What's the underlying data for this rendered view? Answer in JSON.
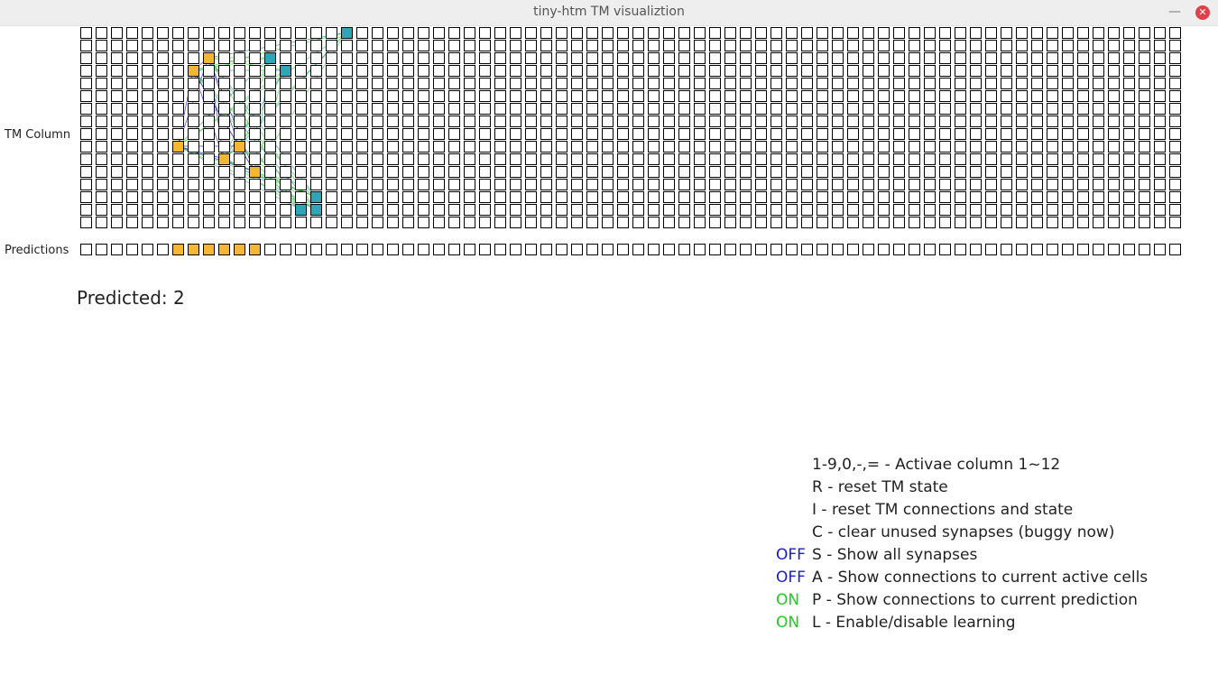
{
  "window": {
    "title": "tiny-htm TM visualiztion"
  },
  "labels": {
    "tm_column": "TM Column",
    "predictions": "Predictions"
  },
  "predicted_text": "Predicted: 2",
  "grid": {
    "columns": 12,
    "cells_per_column": 6,
    "rows": 16,
    "active_cells": [
      {
        "column": 2,
        "cell": 5,
        "row": 0
      },
      {
        "column": 2,
        "cell": 0,
        "row": 2
      },
      {
        "column": 2,
        "cell": 1,
        "row": 3
      },
      {
        "column": 2,
        "cell": 3,
        "row": 13
      },
      {
        "column": 2,
        "cell": 2,
        "row": 14
      },
      {
        "column": 2,
        "cell": 3,
        "row": 14
      }
    ],
    "predicted_cells": [
      {
        "column": 1,
        "cell": 2,
        "row": 2
      },
      {
        "column": 1,
        "cell": 1,
        "row": 3
      },
      {
        "column": 1,
        "cell": 0,
        "row": 9
      },
      {
        "column": 1,
        "cell": 4,
        "row": 9
      },
      {
        "column": 1,
        "cell": 3,
        "row": 10
      },
      {
        "column": 1,
        "cell": 5,
        "row": 11
      }
    ],
    "predicted_columns": [
      1
    ]
  },
  "colors": {
    "predicted_cell": "#f5b731",
    "active_cell": "#2fa6b8",
    "synapse_active": "#1a1ad6",
    "synapse_prediction": "#33d133",
    "off": "#1a1ad6",
    "on": "#22cc22"
  },
  "help": [
    {
      "flag": "",
      "text": "1-9,0,-,= - Activae column 1~12"
    },
    {
      "flag": "",
      "text": "R - reset TM state"
    },
    {
      "flag": "",
      "text": "I - reset TM connections and state"
    },
    {
      "flag": "",
      "text": "C - clear unused synapses (buggy now)"
    },
    {
      "flag": "OFF",
      "flag_state": "off",
      "text": "S - Show all synapses"
    },
    {
      "flag": "OFF",
      "flag_state": "off",
      "text": "A - Show connections to current active cells"
    },
    {
      "flag": "ON",
      "flag_state": "on",
      "text": "P - Show connections to current prediction"
    },
    {
      "flag": "ON",
      "flag_state": "on",
      "text": "L - Enable/disable learning"
    }
  ]
}
